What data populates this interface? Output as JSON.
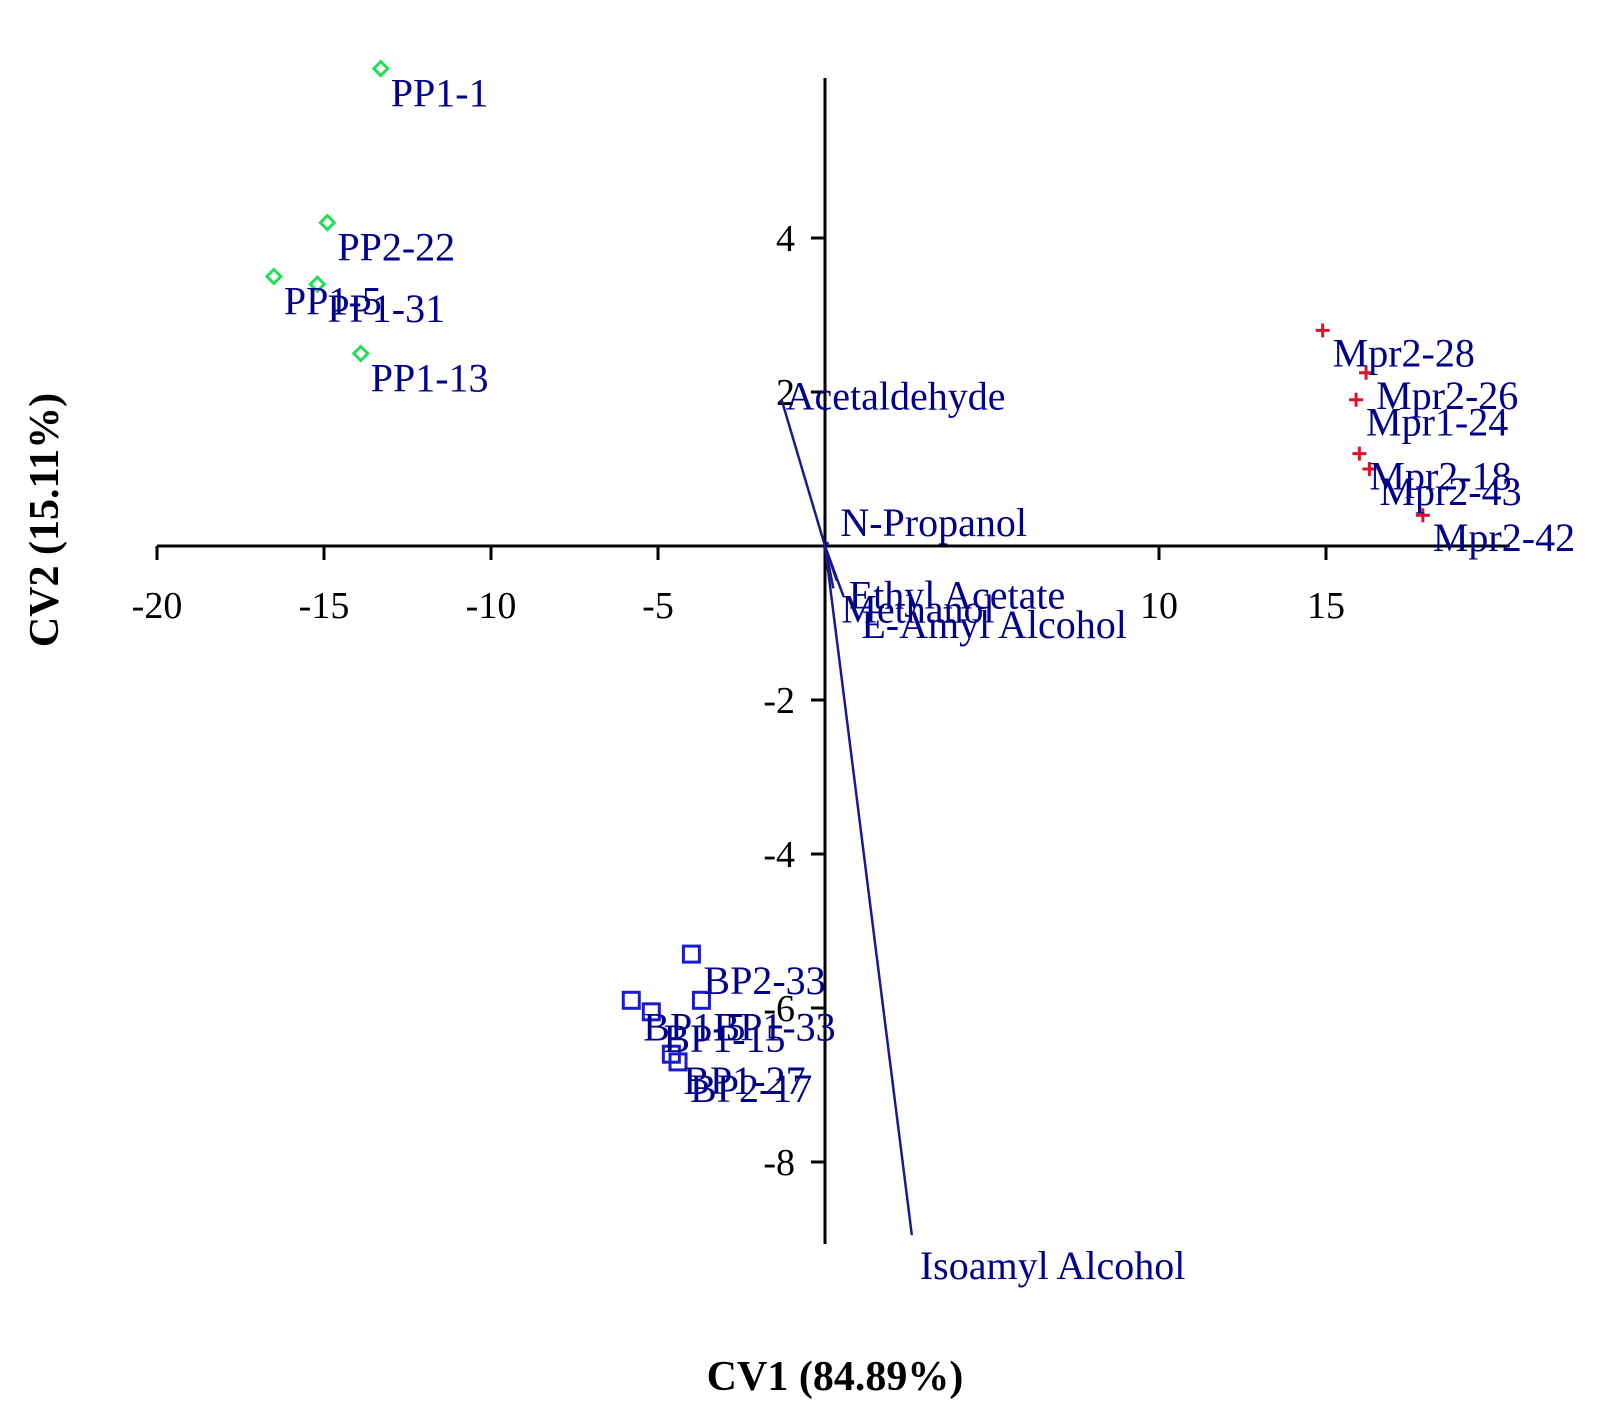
{
  "chart_data": {
    "type": "scatter",
    "subtype": "canonical-variate biplot",
    "xlabel": "CV1 (84.89%)",
    "ylabel": "CV2 (15.11%)",
    "xlim": [
      -20,
      20.5
    ],
    "ylim": [
      -9.0,
      6.0
    ],
    "x_ticks": [
      -20,
      -15,
      -10,
      -5,
      10,
      15
    ],
    "x_tick_labels": [
      "-20",
      "-15",
      "-10",
      "-5",
      "10",
      "15"
    ],
    "y_ticks": [
      4,
      2,
      -2,
      -4,
      -6,
      -8
    ],
    "y_tick_labels": [
      "4",
      "2",
      "-2",
      "-4",
      "-6",
      "-8"
    ],
    "grid": false,
    "legend": "none",
    "colors": {
      "axis": "#000000",
      "labels": "#00008B",
      "pp_marker": "#22DD55",
      "mpr_marker": "#E0102A",
      "bp_marker": "#1A1AD0",
      "vector": "#1A1A8C"
    },
    "groups": [
      {
        "marker": "diamond",
        "points": [
          {
            "label": "PP1-1",
            "x": -13.3,
            "y": 6.2
          },
          {
            "label": "PP2-22",
            "x": -14.9,
            "y": 4.2
          },
          {
            "label": "PP1-5",
            "x": -16.5,
            "y": 3.5
          },
          {
            "label": "PP1-31",
            "x": -15.2,
            "y": 3.4
          },
          {
            "label": "PP1-13",
            "x": -13.9,
            "y": 2.5
          }
        ]
      },
      {
        "marker": "plus",
        "points": [
          {
            "label": "Mpr2-28",
            "x": 14.9,
            "y": 2.8
          },
          {
            "label": "Mpr2-26",
            "x": 16.2,
            "y": 2.25
          },
          {
            "label": "Mpr1-24",
            "x": 15.9,
            "y": 1.9
          },
          {
            "label": "Mpr2-18",
            "x": 16.0,
            "y": 1.2
          },
          {
            "label": "Mpr2-43",
            "x": 16.3,
            "y": 1.0
          },
          {
            "label": "Mpr2-42",
            "x": 17.9,
            "y": 0.4
          }
        ]
      },
      {
        "marker": "square",
        "points": [
          {
            "label": "BP2-33",
            "x": -4.0,
            "y": -5.3
          },
          {
            "label": "BP1-33",
            "x": -3.7,
            "y": -5.9
          },
          {
            "label": "BP1-5",
            "x": -5.8,
            "y": -5.9
          },
          {
            "label": "BP1-15",
            "x": -5.2,
            "y": -6.05
          },
          {
            "label": "BP1-27",
            "x": -4.6,
            "y": -6.6
          },
          {
            "label": "BP2-17",
            "x": -4.4,
            "y": -6.7
          }
        ]
      }
    ],
    "variables": [
      {
        "label": "Acetaldehyde",
        "x": -1.3,
        "y": 1.9
      },
      {
        "label": "N-Propanol",
        "x": 0.1,
        "y": 0.05
      },
      {
        "label": "Ethyl Acetate",
        "x": 0.35,
        "y": -0.45
      },
      {
        "label": "Methanol",
        "x": 0.25,
        "y": -0.55
      },
      {
        "label": "E-Amyl Alcohol",
        "x": 0.55,
        "y": -0.65
      },
      {
        "label": "Isoamyl Alcohol",
        "x": 2.6,
        "y": -8.95
      }
    ]
  }
}
